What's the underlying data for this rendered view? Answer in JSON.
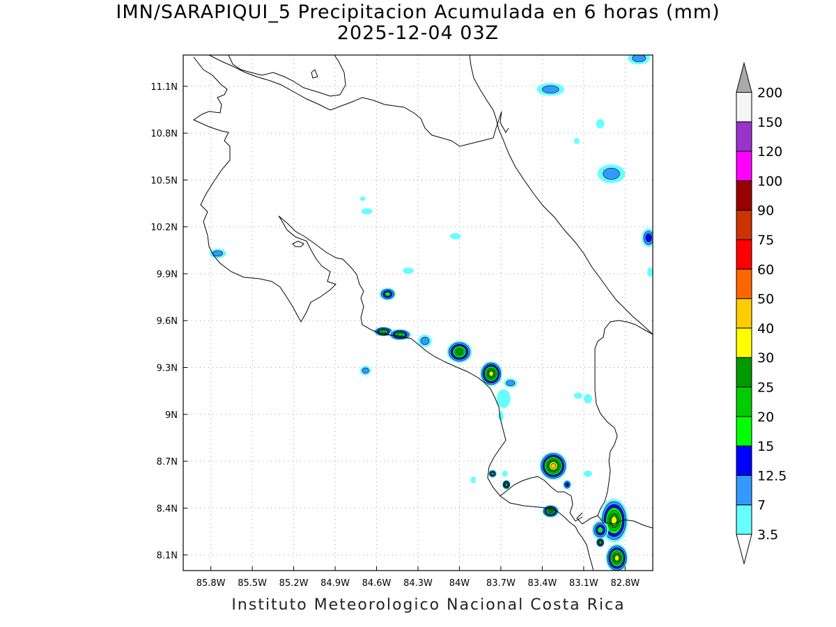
{
  "title": {
    "line1": "IMN/SARAPIQUI_5 Precipitacion Acumulada en 6 horas (mm)",
    "line2": "2025-12-04 03Z"
  },
  "footer": "Instituto Meteorologico Nacional Costa Rica",
  "map": {
    "lon_range": [
      -86.0,
      -82.6
    ],
    "lat_range": [
      8.0,
      11.3
    ],
    "lon_ticks": [
      {
        "value": -85.8,
        "label": "85.8W"
      },
      {
        "value": -85.5,
        "label": "85.5W"
      },
      {
        "value": -85.2,
        "label": "85.2W"
      },
      {
        "value": -84.9,
        "label": "84.9W"
      },
      {
        "value": -84.6,
        "label": "84.6W"
      },
      {
        "value": -84.3,
        "label": "84.3W"
      },
      {
        "value": -84.0,
        "label": "84W"
      },
      {
        "value": -83.7,
        "label": "83.7W"
      },
      {
        "value": -83.4,
        "label": "83.4W"
      },
      {
        "value": -83.1,
        "label": "83.1W"
      },
      {
        "value": -82.8,
        "label": "82.8W"
      }
    ],
    "lat_ticks": [
      {
        "value": 11.1,
        "label": "11.1N"
      },
      {
        "value": 10.8,
        "label": "10.8N"
      },
      {
        "value": 10.5,
        "label": "10.5N"
      },
      {
        "value": 10.2,
        "label": "10.2N"
      },
      {
        "value": 9.9,
        "label": "9.9N"
      },
      {
        "value": 9.6,
        "label": "9.6N"
      },
      {
        "value": 9.3,
        "label": "9.3N"
      },
      {
        "value": 9.0,
        "label": "9N"
      },
      {
        "value": 8.7,
        "label": "8.7N"
      },
      {
        "value": 8.4,
        "label": "8.4N"
      },
      {
        "value": 8.1,
        "label": "8.1N"
      }
    ],
    "grid": true,
    "precip_cells": [
      {
        "lon": -82.7,
        "lat": 11.28,
        "rx": 0.08,
        "ry": 0.04,
        "level": 2
      },
      {
        "lon": -83.34,
        "lat": 11.08,
        "rx": 0.1,
        "ry": 0.04,
        "level": 2
      },
      {
        "lon": -82.98,
        "lat": 10.86,
        "rx": 0.03,
        "ry": 0.03,
        "level": 1
      },
      {
        "lon": -83.15,
        "lat": 10.75,
        "rx": 0.02,
        "ry": 0.02,
        "level": 1
      },
      {
        "lon": -82.9,
        "lat": 10.54,
        "rx": 0.1,
        "ry": 0.06,
        "level": 2
      },
      {
        "lon": -82.63,
        "lat": 10.13,
        "rx": 0.05,
        "ry": 0.06,
        "level": 3
      },
      {
        "lon": -82.62,
        "lat": 9.91,
        "rx": 0.02,
        "ry": 0.03,
        "level": 1
      },
      {
        "lon": -85.75,
        "lat": 10.03,
        "rx": 0.06,
        "ry": 0.03,
        "level": 2
      },
      {
        "lon": -84.7,
        "lat": 10.38,
        "rx": 0.02,
        "ry": 0.015,
        "level": 1
      },
      {
        "lon": -84.67,
        "lat": 10.3,
        "rx": 0.04,
        "ry": 0.02,
        "level": 1
      },
      {
        "lon": -84.03,
        "lat": 10.14,
        "rx": 0.04,
        "ry": 0.02,
        "level": 1
      },
      {
        "lon": -84.37,
        "lat": 9.92,
        "rx": 0.04,
        "ry": 0.02,
        "level": 1
      },
      {
        "lon": -84.52,
        "lat": 9.77,
        "rx": 0.06,
        "ry": 0.04,
        "level": 4
      },
      {
        "lon": -84.55,
        "lat": 9.53,
        "rx": 0.07,
        "ry": 0.03,
        "level": 5
      },
      {
        "lon": -84.43,
        "lat": 9.51,
        "rx": 0.08,
        "ry": 0.035,
        "level": 5
      },
      {
        "lon": -84.25,
        "lat": 9.47,
        "rx": 0.05,
        "ry": 0.04,
        "level": 2
      },
      {
        "lon": -84.0,
        "lat": 9.4,
        "rx": 0.09,
        "ry": 0.07,
        "level": 6
      },
      {
        "lon": -83.77,
        "lat": 9.26,
        "rx": 0.08,
        "ry": 0.08,
        "level": 7
      },
      {
        "lon": -83.63,
        "lat": 9.2,
        "rx": 0.05,
        "ry": 0.03,
        "level": 2
      },
      {
        "lon": -84.68,
        "lat": 9.28,
        "rx": 0.04,
        "ry": 0.03,
        "level": 2
      },
      {
        "lon": -83.68,
        "lat": 9.1,
        "rx": 0.05,
        "ry": 0.06,
        "level": 1
      },
      {
        "lon": -83.7,
        "lat": 8.99,
        "rx": 0.02,
        "ry": 0.03,
        "level": 1
      },
      {
        "lon": -83.14,
        "lat": 9.12,
        "rx": 0.03,
        "ry": 0.02,
        "level": 1
      },
      {
        "lon": -83.07,
        "lat": 9.1,
        "rx": 0.03,
        "ry": 0.03,
        "level": 1
      },
      {
        "lon": -83.32,
        "lat": 8.67,
        "rx": 0.1,
        "ry": 0.09,
        "level": 8
      },
      {
        "lon": -83.76,
        "lat": 8.62,
        "rx": 0.03,
        "ry": 0.025,
        "level": 4
      },
      {
        "lon": -83.67,
        "lat": 8.62,
        "rx": 0.02,
        "ry": 0.02,
        "level": 1
      },
      {
        "lon": -83.66,
        "lat": 8.55,
        "rx": 0.03,
        "ry": 0.03,
        "level": 5
      },
      {
        "lon": -83.9,
        "lat": 8.58,
        "rx": 0.02,
        "ry": 0.02,
        "level": 1
      },
      {
        "lon": -83.22,
        "lat": 8.55,
        "rx": 0.03,
        "ry": 0.03,
        "level": 3
      },
      {
        "lon": -83.07,
        "lat": 8.62,
        "rx": 0.03,
        "ry": 0.02,
        "level": 1
      },
      {
        "lon": -83.34,
        "lat": 8.38,
        "rx": 0.06,
        "ry": 0.04,
        "level": 6
      },
      {
        "lon": -82.88,
        "lat": 8.32,
        "rx": 0.1,
        "ry": 0.14,
        "level": 7
      },
      {
        "lon": -82.98,
        "lat": 8.26,
        "rx": 0.06,
        "ry": 0.06,
        "level": 4
      },
      {
        "lon": -82.98,
        "lat": 8.18,
        "rx": 0.03,
        "ry": 0.03,
        "level": 5
      },
      {
        "lon": -82.86,
        "lat": 8.08,
        "rx": 0.08,
        "ry": 0.09,
        "level": 7
      }
    ]
  },
  "colorbar": {
    "colors": [
      "#66ffff",
      "#3399ff",
      "#0000ff",
      "#00ff00",
      "#00cc00",
      "#009900",
      "#ffff00",
      "#ffcc00",
      "#ff6600",
      "#ff0000",
      "#cc3300",
      "#990000",
      "#ff00ff",
      "#9933cc",
      "#f5f5f5",
      "#aaaaaa"
    ],
    "labels": [
      "3.5",
      "7",
      "12.5",
      "15",
      "20",
      "25",
      "30",
      "40",
      "50",
      "60",
      "75",
      "90",
      "100",
      "120",
      "150",
      "200"
    ]
  }
}
